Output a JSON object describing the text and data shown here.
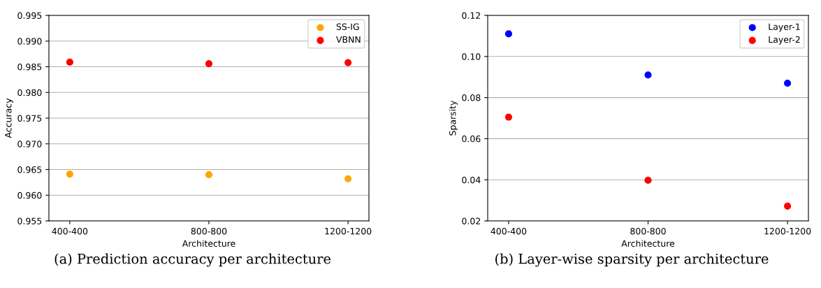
{
  "chart_data": [
    {
      "type": "scatter",
      "xlabel": "Architecture",
      "ylabel": "Accuracy",
      "categories": [
        "400-400",
        "800-800",
        "1200-1200"
      ],
      "series": [
        {
          "name": "SS-IG",
          "color": "#ffa500",
          "values": [
            0.9641,
            0.964,
            0.9632
          ]
        },
        {
          "name": "VBNN",
          "color": "#ff0000",
          "values": [
            0.9859,
            0.9856,
            0.9858
          ]
        }
      ],
      "ylim": [
        0.955,
        0.995
      ],
      "yticks": [
        {
          "value": 0.955,
          "label": "0.955"
        },
        {
          "value": 0.96,
          "label": "0.960"
        },
        {
          "value": 0.965,
          "label": "0.965"
        },
        {
          "value": 0.97,
          "label": "0.970"
        },
        {
          "value": 0.975,
          "label": "0.975"
        },
        {
          "value": 0.98,
          "label": "0.980"
        },
        {
          "value": 0.985,
          "label": "0.985"
        },
        {
          "value": 0.99,
          "label": "0.990"
        },
        {
          "value": 0.995,
          "label": "0.995"
        }
      ],
      "grid": "y",
      "legend": "top right",
      "marker": "circle",
      "annotations": [
        "(a) Prediction accuracy per architecture"
      ]
    },
    {
      "type": "scatter",
      "xlabel": "Architecture",
      "ylabel": "Sparsity",
      "categories": [
        "400-400",
        "800-800",
        "1200-1200"
      ],
      "series": [
        {
          "name": "Layer-1",
          "color": "#0000ff",
          "values": [
            0.111,
            0.091,
            0.087
          ]
        },
        {
          "name": "Layer-2",
          "color": "#ff0000",
          "values": [
            0.0705,
            0.0398,
            0.0272
          ]
        }
      ],
      "ylim": [
        0.02,
        0.12
      ],
      "yticks": [
        {
          "value": 0.02,
          "label": "0.02"
        },
        {
          "value": 0.04,
          "label": "0.04"
        },
        {
          "value": 0.06,
          "label": "0.06"
        },
        {
          "value": 0.08,
          "label": "0.08"
        },
        {
          "value": 0.1,
          "label": "0.10"
        },
        {
          "value": 0.12,
          "label": "0.12"
        }
      ],
      "grid": "y",
      "legend": "top right",
      "marker": "circle",
      "annotations": [
        "(b) Layer-wise sparsity per architecture"
      ]
    }
  ]
}
